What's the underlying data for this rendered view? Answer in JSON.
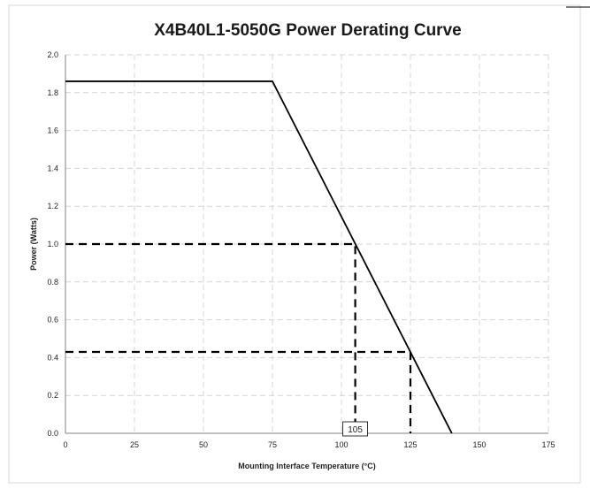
{
  "chart_data": {
    "type": "line",
    "title": "X4B40L1-5050G Power Derating Curve",
    "xlabel": "Mounting Interface Temperature (°C)",
    "ylabel": "Power (Watts)",
    "xlim": [
      0,
      175
    ],
    "ylim": [
      0,
      2.0
    ],
    "x_ticks": [
      0,
      25,
      50,
      75,
      100,
      125,
      150,
      175
    ],
    "y_ticks": [
      0.0,
      0.2,
      0.4,
      0.6,
      0.8,
      1.0,
      1.2,
      1.4,
      1.6,
      1.8,
      2.0
    ],
    "grid": true,
    "grid_style": "dashed",
    "series": [
      {
        "x": [
          0,
          75,
          140
        ],
        "y": [
          1.86,
          1.86,
          0.0
        ],
        "color": "#000000"
      }
    ],
    "reference_lines": [
      {
        "points": [
          [
            0,
            1.0
          ],
          [
            105,
            1.0
          ],
          [
            105,
            0.0
          ]
        ]
      },
      {
        "points": [
          [
            0,
            0.43
          ],
          [
            125,
            0.43
          ],
          [
            125,
            0.0
          ]
        ]
      }
    ],
    "annotations": [
      {
        "text": "105",
        "x": 105,
        "y": 0.0
      }
    ]
  }
}
